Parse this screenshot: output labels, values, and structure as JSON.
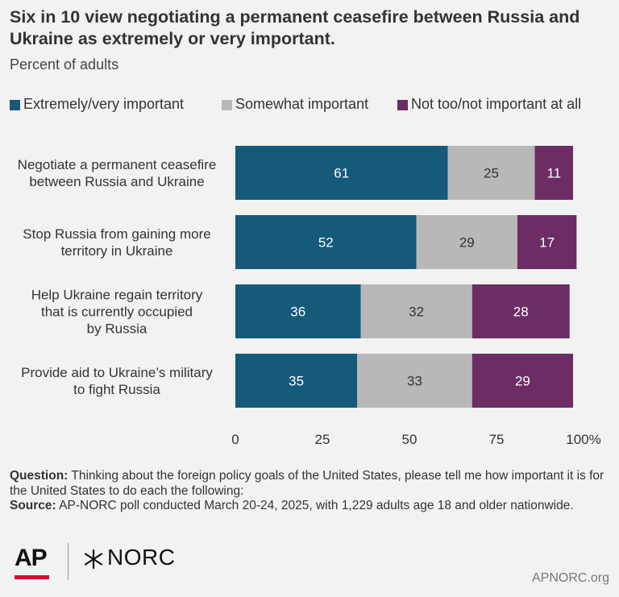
{
  "header": {
    "title": "Six in 10 view negotiating a permanent ceasefire between Russia and Ukraine as extremely or very important.",
    "subtitle": "Percent of adults"
  },
  "chart_data": {
    "type": "bar",
    "orientation": "horizontal",
    "stacked": true,
    "categories": [
      "Negotiate a permanent ceasefire between Russia and Ukraine",
      "Stop Russia from gaining more territory in Ukraine",
      "Help Ukraine regain territory that is currently occupied by Russia",
      "Provide aid to Ukraine’s military to fight Russia"
    ],
    "category_lines": [
      [
        "Negotiate a permanent ceasefire",
        "between Russia and Ukraine"
      ],
      [
        "Stop Russia from gaining more",
        "territory in Ukraine"
      ],
      [
        "Help Ukraine regain territory",
        "that is currently occupied",
        "by Russia"
      ],
      [
        "Provide aid to Ukraine’s military",
        "to fight Russia"
      ]
    ],
    "series": [
      {
        "name": "Extremely/very important",
        "color": "#165a7a",
        "label_color": "#ffffff",
        "values": [
          61,
          52,
          36,
          35
        ]
      },
      {
        "name": "Somewhat important",
        "color": "#b8b8b8",
        "label_color": "#333333",
        "values": [
          25,
          29,
          32,
          33
        ]
      },
      {
        "name": "Not too/not important at all",
        "color": "#6b2d64",
        "label_color": "#ffffff",
        "values": [
          11,
          17,
          28,
          29
        ]
      }
    ],
    "xlim": [
      0,
      100
    ],
    "xticks": [
      0,
      25,
      50,
      75,
      100
    ],
    "xtick_labels": [
      "0",
      "25",
      "50",
      "75",
      "100%"
    ],
    "legend_position": "top",
    "grid": false
  },
  "footer": {
    "question_label": "Question:",
    "question_text": "Thinking about the foreign policy goals of the United States, please tell me how important it is for the United States to do each the following:",
    "source_label": "Source:",
    "source_text": "AP-NORC poll conducted March 20-24, 2025, with 1,229 adults age 18 and older nationwide."
  },
  "branding": {
    "ap_logo": "AP",
    "norc_logo": "NORC",
    "site": "APNORC.org",
    "ap_red": "#e4002b"
  }
}
